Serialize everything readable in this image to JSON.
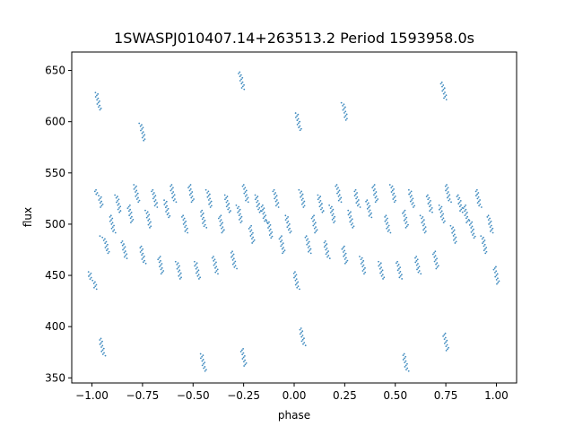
{
  "chart_data": {
    "type": "scatter",
    "title": "1SWASPJ010407.14+263513.2 Period 1593958.0s",
    "xlabel": "phase",
    "ylabel": "flux",
    "xlim": [
      -1.1,
      1.1
    ],
    "ylim": [
      345,
      668
    ],
    "x_ticks": [
      -1.0,
      -0.75,
      -0.5,
      -0.25,
      0.0,
      0.25,
      0.5,
      0.75,
      1.0
    ],
    "x_tick_labels": [
      "−1.00",
      "−0.75",
      "−0.50",
      "−0.25",
      "0.00",
      "0.25",
      "0.50",
      "0.75",
      "1.00"
    ],
    "y_ticks": [
      350,
      400,
      450,
      500,
      550,
      600,
      650
    ],
    "y_tick_labels": [
      "350",
      "400",
      "450",
      "500",
      "550",
      "600",
      "650"
    ],
    "grid": false,
    "legend": "none",
    "marker_color": "#1f77b4",
    "series": [
      {
        "values": [
          {
            "x": -0.99,
            "y": 445
          },
          {
            "x": -0.96,
            "y": 525
          },
          {
            "x": -0.93,
            "y": 480
          },
          {
            "x": -0.9,
            "y": 500
          },
          {
            "x": -0.87,
            "y": 520
          },
          {
            "x": -0.84,
            "y": 475
          },
          {
            "x": -0.81,
            "y": 510
          },
          {
            "x": -0.78,
            "y": 530
          },
          {
            "x": -0.75,
            "y": 470
          },
          {
            "x": -0.72,
            "y": 505
          },
          {
            "x": -0.69,
            "y": 525
          },
          {
            "x": -0.66,
            "y": 460
          },
          {
            "x": -0.63,
            "y": 515
          },
          {
            "x": -0.6,
            "y": 530
          },
          {
            "x": -0.57,
            "y": 455
          },
          {
            "x": -0.54,
            "y": 500
          },
          {
            "x": -0.51,
            "y": 530
          },
          {
            "x": -0.48,
            "y": 455
          },
          {
            "x": -0.45,
            "y": 505
          },
          {
            "x": -0.42,
            "y": 525
          },
          {
            "x": -0.39,
            "y": 460
          },
          {
            "x": -0.36,
            "y": 500
          },
          {
            "x": -0.33,
            "y": 520
          },
          {
            "x": -0.3,
            "y": 465
          },
          {
            "x": -0.27,
            "y": 510
          },
          {
            "x": -0.24,
            "y": 530
          },
          {
            "x": -0.21,
            "y": 490
          },
          {
            "x": -0.18,
            "y": 520
          },
          {
            "x": -0.15,
            "y": 510
          },
          {
            "x": -0.12,
            "y": 495
          },
          {
            "x": -0.09,
            "y": 525
          },
          {
            "x": -0.06,
            "y": 480
          },
          {
            "x": -0.03,
            "y": 500
          },
          {
            "x": 0.01,
            "y": 445
          },
          {
            "x": 0.04,
            "y": 525
          },
          {
            "x": 0.07,
            "y": 480
          },
          {
            "x": 0.1,
            "y": 500
          },
          {
            "x": 0.13,
            "y": 520
          },
          {
            "x": 0.16,
            "y": 475
          },
          {
            "x": 0.19,
            "y": 510
          },
          {
            "x": 0.22,
            "y": 530
          },
          {
            "x": 0.25,
            "y": 470
          },
          {
            "x": 0.28,
            "y": 505
          },
          {
            "x": 0.31,
            "y": 525
          },
          {
            "x": 0.34,
            "y": 460
          },
          {
            "x": 0.37,
            "y": 515
          },
          {
            "x": 0.4,
            "y": 530
          },
          {
            "x": 0.43,
            "y": 455
          },
          {
            "x": 0.46,
            "y": 500
          },
          {
            "x": 0.49,
            "y": 530
          },
          {
            "x": 0.52,
            "y": 455
          },
          {
            "x": 0.55,
            "y": 505
          },
          {
            "x": 0.58,
            "y": 525
          },
          {
            "x": 0.61,
            "y": 460
          },
          {
            "x": 0.64,
            "y": 500
          },
          {
            "x": 0.67,
            "y": 520
          },
          {
            "x": 0.7,
            "y": 465
          },
          {
            "x": 0.73,
            "y": 510
          },
          {
            "x": 0.76,
            "y": 530
          },
          {
            "x": 0.79,
            "y": 490
          },
          {
            "x": 0.82,
            "y": 520
          },
          {
            "x": 0.85,
            "y": 510
          },
          {
            "x": 0.88,
            "y": 495
          },
          {
            "x": 0.91,
            "y": 525
          },
          {
            "x": 0.94,
            "y": 480
          },
          {
            "x": 0.97,
            "y": 500
          },
          {
            "x": 1.0,
            "y": 450
          },
          {
            "x": -0.97,
            "y": 620
          },
          {
            "x": -0.95,
            "y": 380
          },
          {
            "x": -0.75,
            "y": 590
          },
          {
            "x": -0.26,
            "y": 640
          },
          {
            "x": -0.25,
            "y": 370
          },
          {
            "x": 0.02,
            "y": 600
          },
          {
            "x": 0.04,
            "y": 390
          },
          {
            "x": 0.25,
            "y": 610
          },
          {
            "x": 0.74,
            "y": 630
          },
          {
            "x": 0.75,
            "y": 385
          },
          {
            "x": -0.45,
            "y": 365
          },
          {
            "x": 0.55,
            "y": 365
          }
        ]
      }
    ]
  }
}
